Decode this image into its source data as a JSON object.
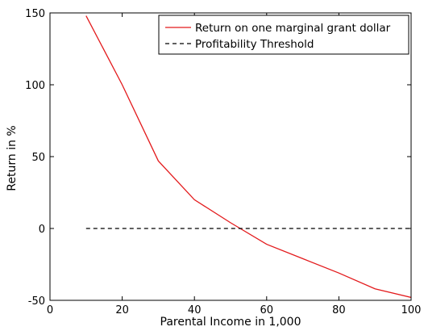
{
  "chart_data": {
    "type": "line",
    "title": "",
    "xlabel": "Parental Income in 1,000",
    "ylabel": "Return in %",
    "xlim": [
      0,
      100
    ],
    "ylim": [
      -50,
      150
    ],
    "xticks": [
      0,
      20,
      40,
      60,
      80,
      100
    ],
    "yticks": [
      -50,
      0,
      50,
      100,
      150
    ],
    "grid": false,
    "legend_position": "top-right",
    "series": [
      {
        "name": "Return on one marginal grant dollar",
        "color": "#e31a1c",
        "style": "solid",
        "x": [
          10,
          20,
          30,
          40,
          50,
          60,
          70,
          80,
          90,
          100
        ],
        "y": [
          148,
          100,
          47,
          20,
          4,
          -11,
          -21,
          -31,
          -42,
          -48
        ]
      },
      {
        "name": "Profitability Threshold",
        "color": "#000000",
        "style": "dashed",
        "x": [
          10,
          100
        ],
        "y": [
          0,
          0
        ]
      }
    ]
  }
}
